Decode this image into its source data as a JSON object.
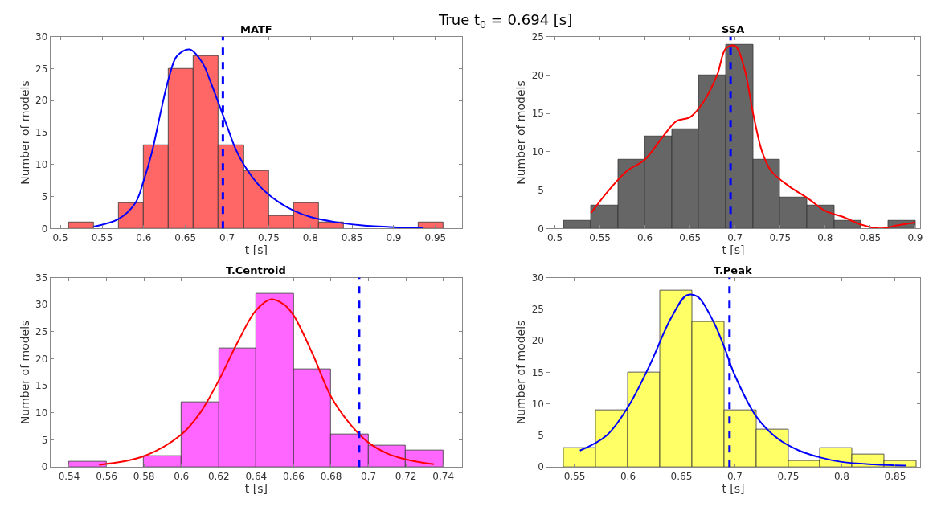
{
  "chart_data": [
    {
      "type": "histogram",
      "title": "MATF",
      "xlabel": "t [s]",
      "ylabel": "Number of models",
      "annotations": [
        "True t$_{0}$ = 0.694 [s]"
      ],
      "color": "#ff6666",
      "bins": [
        0.51,
        0.54,
        0.57,
        0.6,
        0.63,
        0.66,
        0.69,
        0.72,
        0.75,
        0.78,
        0.81,
        0.84,
        0.87,
        0.9,
        0.93,
        0.96
      ],
      "values": [
        1,
        0,
        4,
        13,
        25,
        27,
        13,
        9,
        2,
        4,
        1,
        0,
        0,
        0,
        1
      ],
      "series": [
        {
          "type": "line",
          "color": "#0000ff",
          "x": [
            0.54,
            0.57,
            0.59,
            0.6,
            0.61,
            0.62,
            0.63,
            0.64,
            0.655,
            0.67,
            0.68,
            0.69,
            0.7,
            0.71,
            0.72,
            0.74,
            0.76,
            0.78,
            0.8,
            0.83,
            0.86,
            0.9,
            0.935
          ],
          "values": [
            0.3,
            1.5,
            4,
            7.5,
            12,
            18,
            23.5,
            27,
            28,
            26,
            23,
            19.5,
            16,
            12.5,
            10,
            6.5,
            4.3,
            2.8,
            1.8,
            1,
            0.5,
            0.2,
            0.1
          ]
        }
      ],
      "ref_lines": [
        {
          "axis": "x",
          "value": 0.695,
          "color": "#0000ff",
          "line_style": "dashed"
        }
      ],
      "xlim": [
        0.488,
        0.982
      ],
      "xticks": [
        0.5,
        0.55,
        0.6,
        0.65,
        0.7,
        0.75,
        0.8,
        0.85,
        0.9,
        0.95
      ],
      "ylim": [
        0,
        30
      ],
      "yticks": [
        0,
        5,
        10,
        15,
        20,
        25,
        30
      ]
    },
    {
      "type": "histogram",
      "title": "SSA",
      "xlabel": "t [s]",
      "ylabel": "Number of models",
      "color": "#666666",
      "bins": [
        0.51,
        0.54,
        0.57,
        0.6,
        0.63,
        0.66,
        0.69,
        0.72,
        0.75,
        0.78,
        0.81,
        0.84,
        0.87,
        0.9
      ],
      "values": [
        1,
        3,
        9,
        12,
        13,
        20,
        24,
        9,
        4,
        3,
        1,
        0,
        1
      ],
      "series": [
        {
          "type": "line",
          "color": "#ff0000",
          "x": [
            0.54,
            0.56,
            0.58,
            0.6,
            0.62,
            0.635,
            0.65,
            0.665,
            0.68,
            0.69,
            0.7,
            0.71,
            0.72,
            0.73,
            0.74,
            0.76,
            0.78,
            0.8,
            0.82,
            0.84,
            0.86,
            0.88,
            0.9
          ],
          "values": [
            2,
            5,
            7.5,
            9,
            12,
            14,
            14.5,
            16.5,
            20,
            23.5,
            23.8,
            21,
            15,
            10,
            7.5,
            5.5,
            4,
            2.3,
            1.5,
            0.5,
            0,
            0.4,
            0.8
          ]
        }
      ],
      "ref_lines": [
        {
          "axis": "x",
          "value": 0.695,
          "color": "#0000ff",
          "line_style": "dashed"
        }
      ],
      "xlim": [
        0.491,
        0.905
      ],
      "xticks": [
        0.5,
        0.55,
        0.6,
        0.65,
        0.7,
        0.75,
        0.8,
        0.85,
        0.9
      ],
      "ylim": [
        0,
        25
      ],
      "yticks": [
        0,
        5,
        10,
        15,
        20,
        25
      ]
    },
    {
      "type": "histogram",
      "title": "T.Centroid",
      "xlabel": "t [s]",
      "ylabel": "Number of models",
      "color": "#ff66ff",
      "bins": [
        0.54,
        0.56,
        0.58,
        0.6,
        0.62,
        0.64,
        0.66,
        0.68,
        0.7,
        0.72,
        0.74
      ],
      "values": [
        1,
        0,
        2,
        12,
        22,
        32,
        18,
        6,
        4,
        3
      ],
      "series": [
        {
          "type": "line",
          "color": "#ff0000",
          "x": [
            0.556,
            0.58,
            0.6,
            0.61,
            0.62,
            0.63,
            0.64,
            0.648,
            0.655,
            0.66,
            0.67,
            0.68,
            0.69,
            0.7,
            0.71,
            0.72,
            0.735
          ],
          "values": [
            0.4,
            2,
            6,
            10,
            16,
            23,
            29,
            31,
            30,
            28,
            21,
            13,
            8,
            4.5,
            2.5,
            1.4,
            0.5
          ]
        }
      ],
      "ref_lines": [
        {
          "axis": "x",
          "value": 0.695,
          "color": "#0000ff",
          "line_style": "dashed"
        }
      ],
      "xlim": [
        0.53,
        0.75
      ],
      "xticks": [
        0.54,
        0.56,
        0.58,
        0.6,
        0.62,
        0.64,
        0.66,
        0.68,
        0.7,
        0.72,
        0.74
      ],
      "ylim": [
        0,
        35
      ],
      "yticks": [
        0,
        5,
        10,
        15,
        20,
        25,
        30,
        35
      ]
    },
    {
      "type": "histogram",
      "title": "T.Peak",
      "xlabel": "t [s]",
      "ylabel": "Number of models",
      "color": "#ffff66",
      "bins": [
        0.54,
        0.57,
        0.6,
        0.63,
        0.66,
        0.69,
        0.72,
        0.75,
        0.78,
        0.81,
        0.84,
        0.87
      ],
      "values": [
        3,
        9,
        15,
        28,
        23,
        9,
        6,
        1,
        3,
        2,
        1
      ],
      "series": [
        {
          "type": "line",
          "color": "#0000ff",
          "x": [
            0.555,
            0.58,
            0.6,
            0.62,
            0.64,
            0.655,
            0.665,
            0.68,
            0.69,
            0.7,
            0.72,
            0.74,
            0.76,
            0.78,
            0.8,
            0.83,
            0.86
          ],
          "values": [
            2.6,
            5,
            9.5,
            16,
            23.5,
            27.2,
            27,
            23,
            19,
            14.5,
            8,
            4.5,
            2.6,
            1.5,
            0.8,
            0.4,
            0.2
          ]
        }
      ],
      "ref_lines": [
        {
          "axis": "x",
          "value": 0.695,
          "color": "#0000ff",
          "line_style": "dashed"
        }
      ],
      "xlim": [
        0.524,
        0.873
      ],
      "xticks": [
        0.55,
        0.6,
        0.65,
        0.7,
        0.75,
        0.8,
        0.85
      ],
      "ylim": [
        0,
        30
      ],
      "yticks": [
        0,
        5,
        10,
        15,
        20,
        25,
        30
      ]
    }
  ]
}
